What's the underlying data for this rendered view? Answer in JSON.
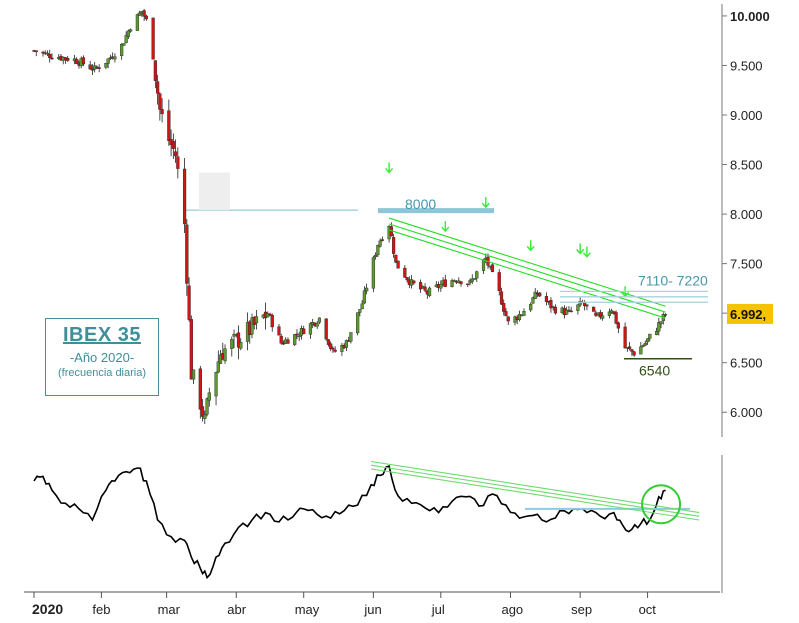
{
  "chart_data": [
    {
      "type": "candlestick",
      "title": "IBEX 35",
      "subtitle": "-Año 2020-",
      "note": "(frecuencia diaria)",
      "y_ticks": [
        "10.000",
        "9.500",
        "9.000",
        "8.500",
        "8.000",
        "7.500",
        "7.000",
        "6.500",
        "6.000"
      ],
      "y_tick_values": [
        10000,
        9500,
        9000,
        8500,
        8000,
        7500,
        7000,
        6500,
        6000
      ],
      "ylim": [
        5750,
        10080
      ],
      "x_labels": [
        "2020",
        "feb",
        "mar",
        "abr",
        "may",
        "jun",
        "jul",
        "ago",
        "sep",
        "oct"
      ],
      "x_label_dates": [
        "2020-01-02",
        "2020-02-01",
        "2020-03-01",
        "2020-04-01",
        "2020-05-01",
        "2020-06-01",
        "2020-07-01",
        "2020-08-01",
        "2020-09-01",
        "2020-10-01"
      ],
      "xlim": [
        "2020-01-02",
        "2020-10-31"
      ],
      "last_price": "6.992,",
      "series": [
        {
          "close_path": [
            [
              "2020-01-02",
              9650
            ],
            [
              "2020-01-06",
              9620
            ],
            [
              "2020-01-10",
              9600
            ],
            [
              "2020-01-15",
              9580
            ],
            [
              "2020-01-20",
              9560
            ],
            [
              "2020-01-24",
              9520
            ],
            [
              "2020-01-29",
              9460
            ],
            [
              "2020-02-04",
              9560
            ],
            [
              "2020-02-10",
              9700
            ],
            [
              "2020-02-14",
              9900
            ],
            [
              "2020-02-19",
              10050
            ],
            [
              "2020-02-21",
              9950
            ],
            [
              "2020-02-24",
              9600
            ],
            [
              "2020-02-27",
              9050
            ],
            [
              "2020-03-02",
              8750
            ],
            [
              "2020-03-05",
              8600
            ],
            [
              "2020-03-09",
              7900
            ],
            [
              "2020-03-12",
              6400
            ],
            [
              "2020-03-16",
              6100
            ],
            [
              "2020-03-18",
              5900
            ],
            [
              "2020-03-20",
              6200
            ],
            [
              "2020-03-25",
              6600
            ],
            [
              "2020-03-31",
              6700
            ],
            [
              "2020-04-08",
              6850
            ],
            [
              "2020-04-15",
              7000
            ],
            [
              "2020-04-21",
              6700
            ],
            [
              "2020-04-29",
              6800
            ],
            [
              "2020-05-08",
              6950
            ],
            [
              "2020-05-14",
              6600
            ],
            [
              "2020-05-20",
              6700
            ],
            [
              "2020-05-27",
              7100
            ],
            [
              "2020-06-03",
              7700
            ],
            [
              "2020-06-08",
              7900
            ],
            [
              "2020-06-11",
              7500
            ],
            [
              "2020-06-18",
              7300
            ],
            [
              "2020-06-25",
              7200
            ],
            [
              "2020-07-02",
              7300
            ],
            [
              "2020-07-08",
              7350
            ],
            [
              "2020-07-14",
              7300
            ],
            [
              "2020-07-21",
              7550
            ],
            [
              "2020-07-27",
              7200
            ],
            [
              "2020-07-31",
              6900
            ],
            [
              "2020-08-06",
              7000
            ],
            [
              "2020-08-13",
              7200
            ],
            [
              "2020-08-20",
              7050
            ],
            [
              "2020-08-27",
              7000
            ],
            [
              "2020-09-02",
              7100
            ],
            [
              "2020-09-08",
              6950
            ],
            [
              "2020-09-15",
              7050
            ],
            [
              "2020-09-21",
              6650
            ],
            [
              "2020-09-25",
              6600
            ],
            [
              "2020-09-30",
              6700
            ],
            [
              "2020-10-05",
              6850
            ],
            [
              "2020-10-09",
              6992
            ]
          ]
        }
      ],
      "annotations": [
        {
          "text": "8000",
          "value": 8000,
          "color": "#5aa7b8"
        },
        {
          "text": "7110- 7220",
          "range": [
            7110,
            7220
          ],
          "color": "#9ec9d6"
        },
        {
          "text": "6540",
          "value": 6540,
          "color": "#3a5e1e"
        }
      ],
      "arrow_dates": [
        "2020-06-08",
        "2020-07-03",
        "2020-07-21",
        "2020-08-10",
        "2020-09-01",
        "2020-09-04",
        "2020-09-21"
      ],
      "resistance_level": 8040,
      "trendlines": [
        {
          "from": [
            "2020-06-08",
            7960
          ],
          "to": [
            "2020-10-09",
            7070
          ]
        },
        {
          "from": [
            "2020-06-08",
            7900
          ],
          "to": [
            "2020-10-09",
            7010
          ]
        },
        {
          "from": [
            "2020-06-08",
            7840
          ],
          "to": [
            "2020-10-09",
            6950
          ]
        }
      ],
      "colors": {
        "up": "#5e9a2e",
        "down": "#d01515",
        "trendline": "#22dd22",
        "arrows": "#33ee33",
        "resistance": "#5aa7b8",
        "price_tag": "#f5c400"
      }
    },
    {
      "type": "line",
      "name": "indicator",
      "x": [
        "2020-01-02",
        "2020-01-06",
        "2020-01-10",
        "2020-01-16",
        "2020-01-22",
        "2020-01-28",
        "2020-02-03",
        "2020-02-07",
        "2020-02-12",
        "2020-02-17",
        "2020-02-21",
        "2020-02-26",
        "2020-03-03",
        "2020-03-09",
        "2020-03-12",
        "2020-03-16",
        "2020-03-19",
        "2020-03-23",
        "2020-03-27",
        "2020-04-02",
        "2020-04-08",
        "2020-04-14",
        "2020-04-20",
        "2020-04-26",
        "2020-05-01",
        "2020-05-07",
        "2020-05-13",
        "2020-05-19",
        "2020-05-25",
        "2020-05-31",
        "2020-06-04",
        "2020-06-08",
        "2020-06-12",
        "2020-06-18",
        "2020-06-24",
        "2020-06-30",
        "2020-07-06",
        "2020-07-12",
        "2020-07-18",
        "2020-07-24",
        "2020-07-30",
        "2020-08-05",
        "2020-08-11",
        "2020-08-17",
        "2020-08-23",
        "2020-08-29",
        "2020-09-04",
        "2020-09-10",
        "2020-09-16",
        "2020-09-20",
        "2020-09-24",
        "2020-09-28",
        "2020-10-02",
        "2020-10-06",
        "2020-10-09"
      ],
      "y": [
        0.72,
        0.77,
        0.62,
        0.48,
        0.42,
        0.3,
        0.62,
        0.72,
        0.82,
        0.86,
        0.72,
        0.3,
        0.12,
        0.08,
        -0.1,
        -0.22,
        -0.32,
        -0.1,
        0.05,
        0.22,
        0.3,
        0.38,
        0.28,
        0.33,
        0.42,
        0.36,
        0.32,
        0.4,
        0.46,
        0.68,
        0.78,
        0.88,
        0.56,
        0.48,
        0.43,
        0.38,
        0.5,
        0.55,
        0.45,
        0.58,
        0.46,
        0.32,
        0.35,
        0.28,
        0.4,
        0.42,
        0.38,
        0.34,
        0.38,
        0.24,
        0.2,
        0.26,
        0.3,
        0.55,
        0.62
      ],
      "ylim": [
        -0.4,
        1.0
      ],
      "trendlines": [
        {
          "from": [
            "2020-05-31",
            0.93
          ],
          "to": [
            "2020-10-24",
            0.38
          ]
        },
        {
          "from": [
            "2020-05-31",
            0.89
          ],
          "to": [
            "2020-10-24",
            0.34
          ]
        },
        {
          "from": [
            "2020-05-31",
            0.85
          ],
          "to": [
            "2020-10-24",
            0.3
          ]
        }
      ],
      "highlight_date": "2020-10-07",
      "colors": {
        "line": "#000000",
        "trendline": "#6edb6e",
        "highlight": "#33cc33",
        "resistance": "#8ecbe0"
      }
    }
  ]
}
